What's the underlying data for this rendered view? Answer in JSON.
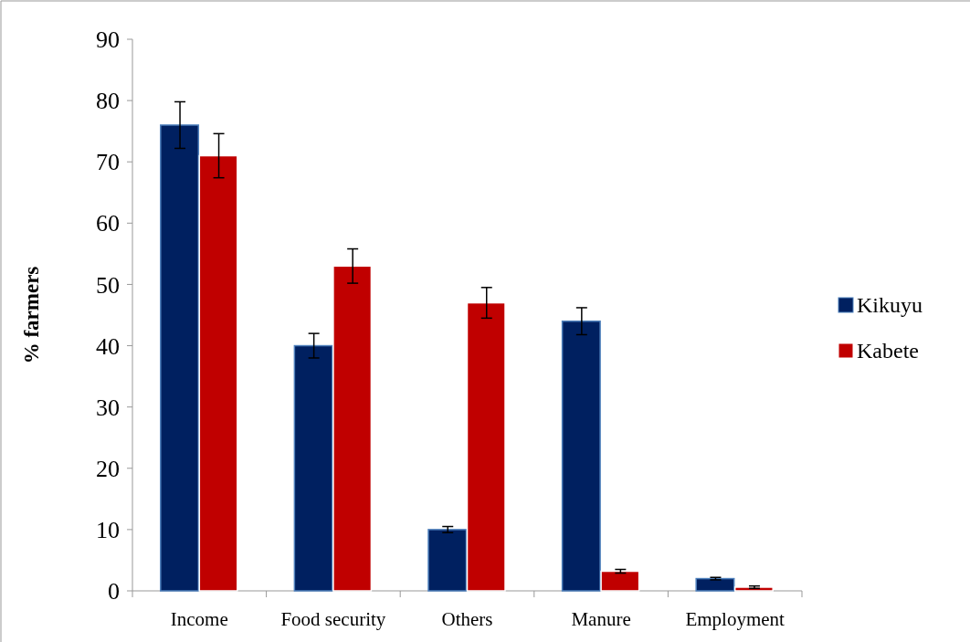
{
  "chart_data": {
    "type": "bar",
    "ylabel": "% farmers",
    "categories": [
      "Income",
      "Food security",
      "Others",
      "Manure",
      "Employment"
    ],
    "series": [
      {
        "name": "Kikuyu",
        "color": "#002060",
        "values": [
          76,
          40,
          10,
          44,
          2
        ],
        "errors": [
          3.8,
          2,
          0.5,
          2.2,
          0.2
        ]
      },
      {
        "name": "Kabete",
        "color": "#c00000",
        "values": [
          71,
          53,
          47,
          3.2,
          0.6
        ],
        "errors": [
          3.6,
          2.8,
          2.5,
          0.3,
          0.2
        ]
      }
    ],
    "ylim": [
      0,
      90
    ],
    "yticks": [
      0,
      10,
      20,
      30,
      40,
      50,
      60,
      70,
      80,
      90
    ],
    "grid": false,
    "legend": "right"
  }
}
